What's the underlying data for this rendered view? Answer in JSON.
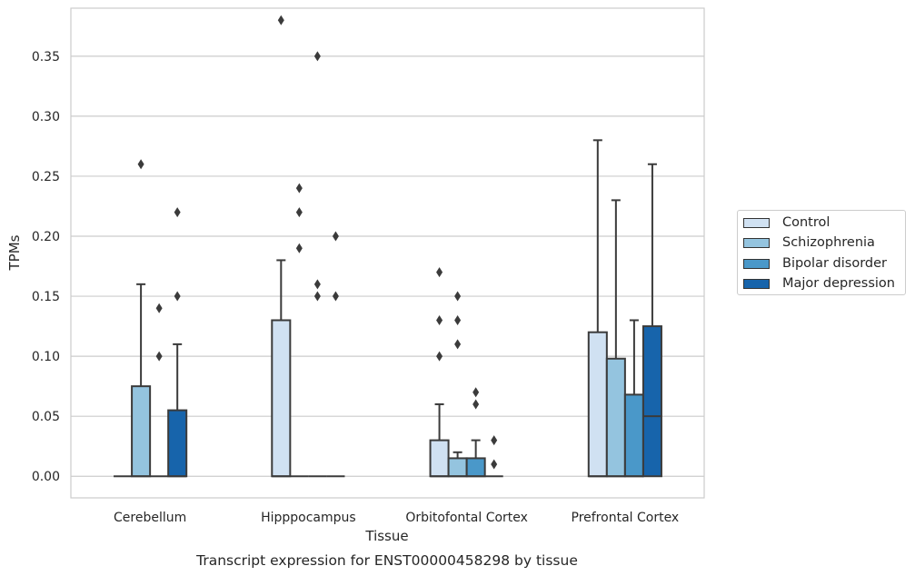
{
  "chart_data": {
    "type": "box",
    "title": "",
    "caption": "Transcript expression for ENST00000458298 by tissue",
    "xlabel": "Tissue",
    "ylabel": "TPMs",
    "ylim": [
      -0.018,
      0.39
    ],
    "yticks": [
      "0.00",
      "0.05",
      "0.10",
      "0.15",
      "0.20",
      "0.25",
      "0.30",
      "0.35"
    ],
    "ytick_values": [
      0,
      0.05,
      0.1,
      0.15,
      0.2,
      0.25,
      0.3,
      0.35
    ],
    "grid": true,
    "legend_position": "right",
    "categories": [
      "Cerebellum",
      "Hipppocampus",
      "Orbitofontal Cortex",
      "Prefrontal Cortex"
    ],
    "series": [
      {
        "name": "Control",
        "color": "#d0e1f2",
        "boxes": [
          {
            "q1": 0,
            "median": 0,
            "q3": 0,
            "whisker_low": 0,
            "whisker_high": 0,
            "outliers": []
          },
          {
            "q1": 0,
            "median": 0,
            "q3": 0.13,
            "whisker_low": 0,
            "whisker_high": 0.18,
            "outliers": [
              0.38
            ]
          },
          {
            "q1": 0,
            "median": 0,
            "q3": 0.03,
            "whisker_low": 0,
            "whisker_high": 0.06,
            "outliers": [
              0.1,
              0.13,
              0.17
            ]
          },
          {
            "q1": 0,
            "median": 0,
            "q3": 0.12,
            "whisker_low": 0,
            "whisker_high": 0.28,
            "outliers": []
          }
        ]
      },
      {
        "name": "Schizophrenia",
        "color": "#94c4df",
        "boxes": [
          {
            "q1": 0,
            "median": 0,
            "q3": 0.075,
            "whisker_low": 0,
            "whisker_high": 0.16,
            "outliers": [
              0.26
            ]
          },
          {
            "q1": 0,
            "median": 0,
            "q3": 0,
            "whisker_low": 0,
            "whisker_high": 0,
            "outliers": [
              0.19,
              0.22,
              0.24
            ]
          },
          {
            "q1": 0,
            "median": 0,
            "q3": 0.015,
            "whisker_low": 0,
            "whisker_high": 0.02,
            "outliers": [
              0.11,
              0.13,
              0.15
            ]
          },
          {
            "q1": 0,
            "median": 0,
            "q3": 0.098,
            "whisker_low": 0,
            "whisker_high": 0.23,
            "outliers": []
          }
        ]
      },
      {
        "name": "Bipolar disorder",
        "color": "#4a98c9",
        "boxes": [
          {
            "q1": 0,
            "median": 0,
            "q3": 0,
            "whisker_low": 0,
            "whisker_high": 0,
            "outliers": [
              0.1,
              0.14
            ]
          },
          {
            "q1": 0,
            "median": 0,
            "q3": 0,
            "whisker_low": 0,
            "whisker_high": 0,
            "outliers": [
              0.15,
              0.16,
              0.35
            ]
          },
          {
            "q1": 0,
            "median": 0,
            "q3": 0.015,
            "whisker_low": 0,
            "whisker_high": 0.03,
            "outliers": [
              0.06,
              0.07
            ]
          },
          {
            "q1": 0,
            "median": 0,
            "q3": 0.068,
            "whisker_low": 0,
            "whisker_high": 0.13,
            "outliers": []
          }
        ]
      },
      {
        "name": "Major depression",
        "color": "#1764ab",
        "boxes": [
          {
            "q1": 0,
            "median": 0,
            "q3": 0.055,
            "whisker_low": 0,
            "whisker_high": 0.11,
            "outliers": [
              0.15,
              0.22
            ]
          },
          {
            "q1": 0,
            "median": 0,
            "q3": 0,
            "whisker_low": 0,
            "whisker_high": 0,
            "outliers": [
              0.15,
              0.2
            ]
          },
          {
            "q1": 0,
            "median": 0,
            "q3": 0,
            "whisker_low": 0,
            "whisker_high": 0,
            "outliers": [
              0.01,
              0.03
            ]
          },
          {
            "q1": 0,
            "median": 0.05,
            "q3": 0.125,
            "whisker_low": 0,
            "whisker_high": 0.26,
            "outliers": []
          }
        ]
      }
    ]
  }
}
